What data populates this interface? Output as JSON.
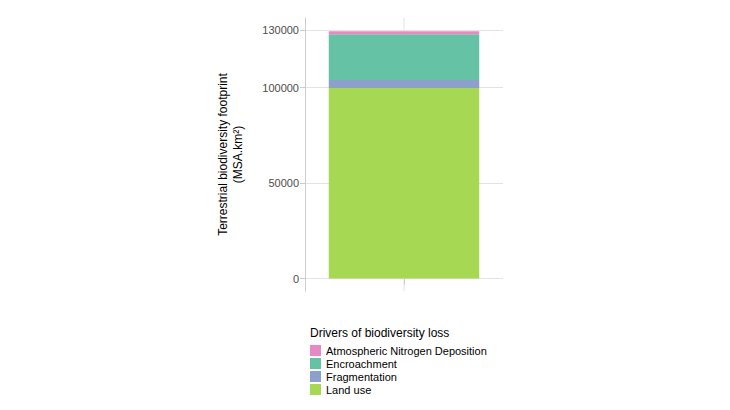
{
  "chart_data": {
    "type": "bar",
    "stacked": true,
    "y_label": "Terrestrial biodiversity footprint\n(MSA.km²)",
    "legend_title": "Drivers of biodiversity loss",
    "legend": "bottom",
    "grid": true,
    "tick_labels": "y",
    "categories": [
      null
    ],
    "series": [
      {
        "name": "Atmospheric Nitrogen Deposition",
        "color": "#e78ac3",
        "values": [
          1500
        ]
      },
      {
        "name": "Encroachment",
        "color": "#66c2a5",
        "values": [
          24000
        ]
      },
      {
        "name": "Fragmentation",
        "color": "#8da0cb",
        "values": [
          4200
        ]
      },
      {
        "name": "Land use",
        "color": "#a6d854",
        "values": [
          99800
        ]
      }
    ],
    "ylim": [
      -6500,
      136500
    ],
    "yticks": [
      0,
      50000,
      100000,
      130000
    ]
  }
}
